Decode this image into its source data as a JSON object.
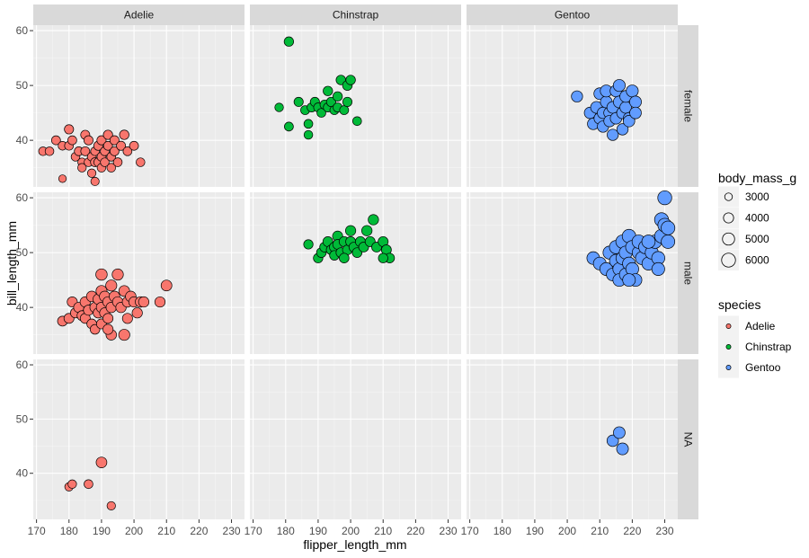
{
  "chart_data": {
    "type": "scatter",
    "xlabel": "flipper_length_mm",
    "ylabel": "bill_length_mm",
    "xlim": [
      169,
      234
    ],
    "ylim": [
      31.5,
      61.0
    ],
    "x_ticks": [
      170,
      180,
      190,
      200,
      210,
      220,
      230
    ],
    "y_ticks": [
      40,
      50,
      60
    ],
    "facet_cols": [
      "Adelie",
      "Chinstrap",
      "Gentoo"
    ],
    "facet_rows": [
      "female",
      "male",
      "NA"
    ],
    "grid": true,
    "legend_position": "right",
    "species_legend": {
      "title": "species",
      "items": [
        {
          "label": "Adelie",
          "color": "#F8766D"
        },
        {
          "label": "Chinstrap",
          "color": "#00BA38"
        },
        {
          "label": "Gentoo",
          "color": "#619CFF"
        }
      ]
    },
    "size_legend": {
      "title": "body_mass_g",
      "items": [
        {
          "label": "3000",
          "value": 3000
        },
        {
          "label": "4000",
          "value": 4000
        },
        {
          "label": "5000",
          "value": 5000
        },
        {
          "label": "6000",
          "value": 6000
        }
      ]
    },
    "panels": [
      {
        "species": "Adelie",
        "sex": "female",
        "points": [
          [
            172,
            38,
            3400
          ],
          [
            174,
            38,
            3400
          ],
          [
            176,
            40,
            3500
          ],
          [
            178,
            39,
            3400
          ],
          [
            178,
            33,
            3000
          ],
          [
            180,
            42,
            3600
          ],
          [
            180,
            39,
            3450
          ],
          [
            181,
            40,
            3500
          ],
          [
            182,
            37,
            3400
          ],
          [
            183,
            38,
            3450
          ],
          [
            184,
            36,
            3300
          ],
          [
            184,
            35,
            3350
          ],
          [
            185,
            38,
            3500
          ],
          [
            185,
            41,
            3550
          ],
          [
            186,
            36,
            3400
          ],
          [
            186,
            40,
            3600
          ],
          [
            187,
            34,
            3300
          ],
          [
            187,
            37,
            3450
          ],
          [
            188,
            36,
            3500
          ],
          [
            188,
            32.5,
            3250
          ],
          [
            188,
            38,
            3400
          ],
          [
            189,
            36,
            3450
          ],
          [
            189,
            39,
            3550
          ],
          [
            190,
            35,
            3400
          ],
          [
            190,
            37,
            3500
          ],
          [
            190,
            40,
            3600
          ],
          [
            191,
            38,
            3450
          ],
          [
            191,
            36,
            3400
          ],
          [
            192,
            41,
            3650
          ],
          [
            192,
            39,
            3500
          ],
          [
            193,
            37,
            3450
          ],
          [
            193,
            35,
            3400
          ],
          [
            194,
            40,
            3600
          ],
          [
            194,
            38,
            3500
          ],
          [
            195,
            36,
            3450
          ],
          [
            196,
            39,
            3550
          ],
          [
            197,
            41,
            3700
          ],
          [
            198,
            38,
            3450
          ],
          [
            200,
            39,
            3500
          ],
          [
            202,
            36,
            3400
          ]
        ]
      },
      {
        "species": "Chinstrap",
        "sex": "female",
        "points": [
          [
            178,
            46,
            3350
          ],
          [
            181,
            58,
            3700
          ],
          [
            181,
            42.5,
            3500
          ],
          [
            184,
            47,
            3600
          ],
          [
            186,
            45.5,
            3500
          ],
          [
            187,
            43,
            3450
          ],
          [
            187,
            41,
            3400
          ],
          [
            188,
            46,
            3550
          ],
          [
            189,
            47,
            3600
          ],
          [
            190,
            46,
            3500
          ],
          [
            191,
            45,
            3450
          ],
          [
            192,
            46.5,
            3600
          ],
          [
            193,
            49,
            3700
          ],
          [
            193,
            46,
            3550
          ],
          [
            194,
            47,
            3650
          ],
          [
            195,
            45.5,
            3500
          ],
          [
            196,
            48,
            3700
          ],
          [
            196,
            46,
            3550
          ],
          [
            197,
            51,
            3750
          ],
          [
            198,
            45.5,
            3500
          ],
          [
            199,
            47,
            3650
          ],
          [
            199,
            50,
            3800
          ],
          [
            200,
            51,
            3750
          ],
          [
            202,
            43.5,
            3450
          ]
        ]
      },
      {
        "species": "Gentoo",
        "sex": "female",
        "points": [
          [
            203,
            48,
            4500
          ],
          [
            207,
            45,
            4600
          ],
          [
            208,
            43,
            4700
          ],
          [
            209,
            46,
            4800
          ],
          [
            210,
            48.5,
            4750
          ],
          [
            210,
            44,
            4650
          ],
          [
            211,
            45,
            4600
          ],
          [
            211,
            42.5,
            4550
          ],
          [
            212,
            47,
            4800
          ],
          [
            212,
            49,
            4900
          ],
          [
            213,
            45,
            4650
          ],
          [
            213,
            43.5,
            4600
          ],
          [
            214,
            46,
            4750
          ],
          [
            214,
            41,
            4500
          ],
          [
            215,
            44,
            4650
          ],
          [
            215,
            49,
            4850
          ],
          [
            216,
            47,
            4800
          ],
          [
            216,
            50,
            4900
          ],
          [
            217,
            45,
            4700
          ],
          [
            217,
            42,
            4550
          ],
          [
            218,
            46,
            4750
          ],
          [
            218,
            48,
            4800
          ],
          [
            219,
            44,
            4700
          ],
          [
            219,
            43.5,
            4650
          ],
          [
            220,
            49,
            4900
          ],
          [
            221,
            47,
            4800
          ],
          [
            221,
            45,
            4700
          ]
        ]
      },
      {
        "species": "Adelie",
        "sex": "male",
        "points": [
          [
            178,
            37.5,
            3900
          ],
          [
            180,
            38,
            3950
          ],
          [
            181,
            41,
            4000
          ],
          [
            182,
            39,
            3950
          ],
          [
            183,
            40,
            4050
          ],
          [
            184,
            38.5,
            3900
          ],
          [
            185,
            41,
            4100
          ],
          [
            185,
            38,
            3950
          ],
          [
            186,
            39.5,
            4000
          ],
          [
            187,
            42,
            4200
          ],
          [
            187,
            37,
            3850
          ],
          [
            188,
            40,
            4050
          ],
          [
            188,
            36,
            3800
          ],
          [
            189,
            41.5,
            4150
          ],
          [
            189,
            39,
            4000
          ],
          [
            190,
            46,
            4600
          ],
          [
            190,
            43,
            4400
          ],
          [
            190,
            40,
            4100
          ],
          [
            190,
            37,
            3950
          ],
          [
            191,
            42,
            4250
          ],
          [
            191,
            39,
            4050
          ],
          [
            192,
            41,
            4150
          ],
          [
            192,
            38,
            3950
          ],
          [
            193,
            44,
            4450
          ],
          [
            193,
            40,
            4100
          ],
          [
            193,
            35,
            4150
          ],
          [
            194,
            42,
            4200
          ],
          [
            195,
            46,
            4500
          ],
          [
            195,
            41,
            4150
          ],
          [
            196,
            40,
            4100
          ],
          [
            197,
            43,
            4300
          ],
          [
            198,
            41,
            4150
          ],
          [
            198,
            38,
            4000
          ],
          [
            199,
            42,
            4200
          ],
          [
            200,
            41,
            4100
          ],
          [
            201,
            39,
            4050
          ],
          [
            202,
            41,
            4150
          ],
          [
            203,
            41,
            4100
          ],
          [
            208,
            41,
            4050
          ],
          [
            210,
            44,
            4300
          ],
          [
            197,
            35,
            4450
          ],
          [
            192,
            36,
            4000
          ]
        ]
      },
      {
        "species": "Chinstrap",
        "sex": "male",
        "points": [
          [
            187,
            51.5,
            3650
          ],
          [
            190,
            49,
            3700
          ],
          [
            191,
            50,
            3800
          ],
          [
            192,
            51,
            3850
          ],
          [
            193,
            52,
            3900
          ],
          [
            194,
            50.5,
            3800
          ],
          [
            195,
            51,
            3900
          ],
          [
            195,
            49.5,
            3750
          ],
          [
            196,
            53,
            4000
          ],
          [
            196,
            51.5,
            3850
          ],
          [
            197,
            50,
            3800
          ],
          [
            198,
            52,
            3950
          ],
          [
            199,
            50.5,
            3850
          ],
          [
            200,
            52,
            3900
          ],
          [
            200,
            54,
            4050
          ],
          [
            201,
            51,
            3850
          ],
          [
            202,
            50,
            3800
          ],
          [
            203,
            52,
            3950
          ],
          [
            204,
            51,
            3900
          ],
          [
            205,
            54,
            4100
          ],
          [
            206,
            52,
            3950
          ],
          [
            207,
            56,
            4100
          ],
          [
            208,
            51,
            3900
          ],
          [
            210,
            52,
            3950
          ],
          [
            211,
            50.5,
            3900
          ],
          [
            212,
            49,
            3800
          ],
          [
            210,
            49,
            3700
          ],
          [
            198,
            49,
            3800
          ]
        ]
      },
      {
        "species": "Gentoo",
        "sex": "male",
        "points": [
          [
            208,
            49,
            5300
          ],
          [
            210,
            48,
            5350
          ],
          [
            212,
            47,
            5400
          ],
          [
            213,
            50,
            5450
          ],
          [
            214,
            46,
            5300
          ],
          [
            215,
            48.5,
            5500
          ],
          [
            215,
            51,
            5600
          ],
          [
            216,
            47,
            5350
          ],
          [
            216,
            45,
            5300
          ],
          [
            217,
            52,
            5700
          ],
          [
            217,
            49,
            5500
          ],
          [
            218,
            50,
            5550
          ],
          [
            218,
            46,
            5350
          ],
          [
            219,
            53,
            5800
          ],
          [
            219,
            48,
            5450
          ],
          [
            220,
            51,
            5650
          ],
          [
            220,
            47,
            5400
          ],
          [
            221,
            45,
            5300
          ],
          [
            222,
            50,
            5550
          ],
          [
            222,
            52,
            5700
          ],
          [
            223,
            49,
            5500
          ],
          [
            224,
            51,
            5600
          ],
          [
            225,
            48,
            5500
          ],
          [
            226,
            50,
            5550
          ],
          [
            227,
            52,
            5700
          ],
          [
            228,
            49,
            5550
          ],
          [
            229,
            56,
            6000
          ],
          [
            229,
            53,
            5900
          ],
          [
            230,
            60,
            6050
          ],
          [
            230,
            55,
            5950
          ],
          [
            231,
            52,
            5800
          ],
          [
            231,
            54.5,
            5900
          ],
          [
            228,
            47,
            5400
          ],
          [
            225,
            52,
            5650
          ],
          [
            219,
            45,
            5300
          ]
        ]
      },
      {
        "species": "Adelie",
        "sex": "NA",
        "points": [
          [
            180,
            37.5,
            3300
          ],
          [
            181,
            38,
            3350
          ],
          [
            186,
            38,
            3450
          ],
          [
            190,
            42,
            4250
          ],
          [
            193,
            34,
            3300
          ]
        ]
      },
      {
        "species": "Chinstrap",
        "sex": "NA",
        "points": []
      },
      {
        "species": "Gentoo",
        "sex": "NA",
        "points": [
          [
            214,
            46,
            4650
          ],
          [
            216,
            47.5,
            4750
          ],
          [
            217,
            44.5,
            4800
          ]
        ]
      }
    ]
  }
}
